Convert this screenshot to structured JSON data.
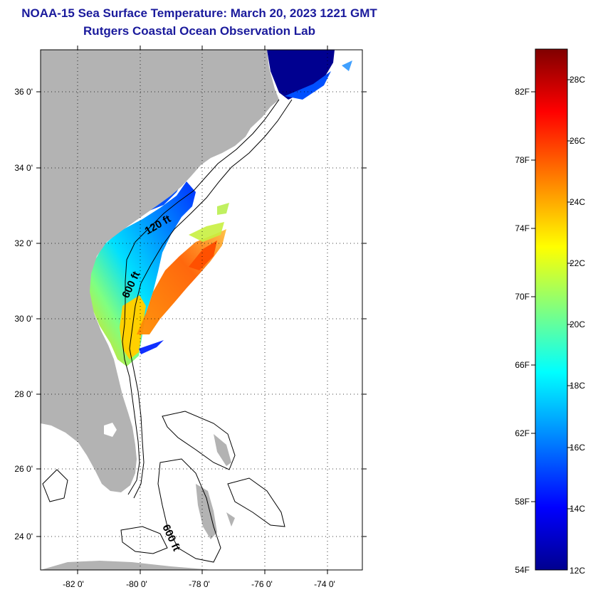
{
  "header": {
    "title": "NOAA-15 Sea Surface Temperature:  March 20, 2023 1221 GMT",
    "subtitle": "Rutgers Coastal Ocean Observation Lab"
  },
  "map": {
    "lon_ticks": [
      "-82 0'",
      "-80 0'",
      "-78 0'",
      "-76 0'",
      "-74 0'"
    ],
    "lat_ticks": [
      "36 0'",
      "34 0'",
      "32 0'",
      "30 0'",
      "28 0'",
      "26 0'",
      "24 0'"
    ],
    "contour_labels": [
      "120 ft",
      "600 ft",
      "600 ft"
    ],
    "colors": {
      "land": "#b3b3b3",
      "background": "#ffffff",
      "contour": "#000000"
    }
  },
  "colorbar": {
    "fahrenheit_labels": [
      "82F",
      "78F",
      "74F",
      "70F",
      "66F",
      "62F",
      "58F",
      "54F"
    ],
    "celsius_labels": [
      "28C",
      "26C",
      "24C",
      "22C",
      "20C",
      "18C",
      "16C",
      "14C",
      "12C"
    ],
    "colors": [
      "#00008f",
      "#0000ff",
      "#00a0ff",
      "#00ffff",
      "#80ff80",
      "#ffff00",
      "#ff8000",
      "#ff0000",
      "#800000"
    ]
  }
}
